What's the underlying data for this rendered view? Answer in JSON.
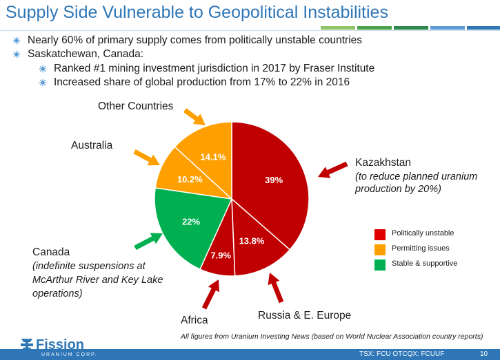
{
  "title": "Supply Side Vulnerable to Geopolitical Instabilities",
  "accent_colors": [
    "#92c36b",
    "#4aa24a",
    "#2d8a4f",
    "#5b9bd5",
    "#2e76b6"
  ],
  "bullets": [
    {
      "text": "Nearly 60% of primary supply comes from politically unstable countries",
      "level": 1
    },
    {
      "text": "Saskatchewan, Canada:",
      "level": 1
    },
    {
      "text": "Ranked #1 mining investment jurisdiction in 2017 by Fraser Institute",
      "level": 2
    },
    {
      "text": "Increased share of global production from 17% to 22% in 2016",
      "level": 2
    }
  ],
  "chart_data": {
    "type": "pie",
    "slices": [
      {
        "name": "Kazakhstan",
        "value": 39,
        "label": "39%",
        "color": "#c00000",
        "category": "Politically unstable"
      },
      {
        "name": "Russia & E. Europe",
        "value": 13.8,
        "label": "13.8%",
        "color": "#c00000",
        "category": "Politically unstable"
      },
      {
        "name": "Africa",
        "value": 7.9,
        "label": "7.9%",
        "color": "#c00000",
        "category": "Politically unstable"
      },
      {
        "name": "Canada",
        "value": 22,
        "label": "22%",
        "color": "#00b050",
        "category": "Stable & supportive"
      },
      {
        "name": "Australia",
        "value": 10.2,
        "label": "10.2%",
        "color": "#ffa000",
        "category": "Permitting issues"
      },
      {
        "name": "Other Countries",
        "value": 14.1,
        "label": "14.1%",
        "color": "#ffa000",
        "category": "Permitting issues"
      }
    ],
    "legend": [
      {
        "label": "Politically unstable",
        "color": "#e00000"
      },
      {
        "label": "Permitting issues",
        "color": "#ffa000"
      },
      {
        "label": "Stable & supportive",
        "color": "#00b050"
      }
    ],
    "legend_position": "right"
  },
  "annotations": {
    "other_countries": "Other Countries",
    "australia": "Australia",
    "kazakhstan": "Kazakhstan",
    "kazakhstan_note_1": "(to reduce planned uranium",
    "kazakhstan_note_2": "production by 20%)",
    "canada": "Canada",
    "canada_note_1": "(indefinite suspensions at",
    "canada_note_2": "McArthur River and Key Lake",
    "canada_note_3": "operations)",
    "africa": "Africa",
    "russia": "Russia & E. Europe",
    "arrow_color": "#c00000"
  },
  "footnote": "All figures from Uranium Investing News (based on World Nuclear Association country reports)",
  "footer": {
    "logo": "Fission",
    "logo_sub": "URANIUM CORP.",
    "ticker": "TSX: FCU   OTCQX: FCUUF",
    "page": "10",
    "band_color": "#2e76b6"
  }
}
